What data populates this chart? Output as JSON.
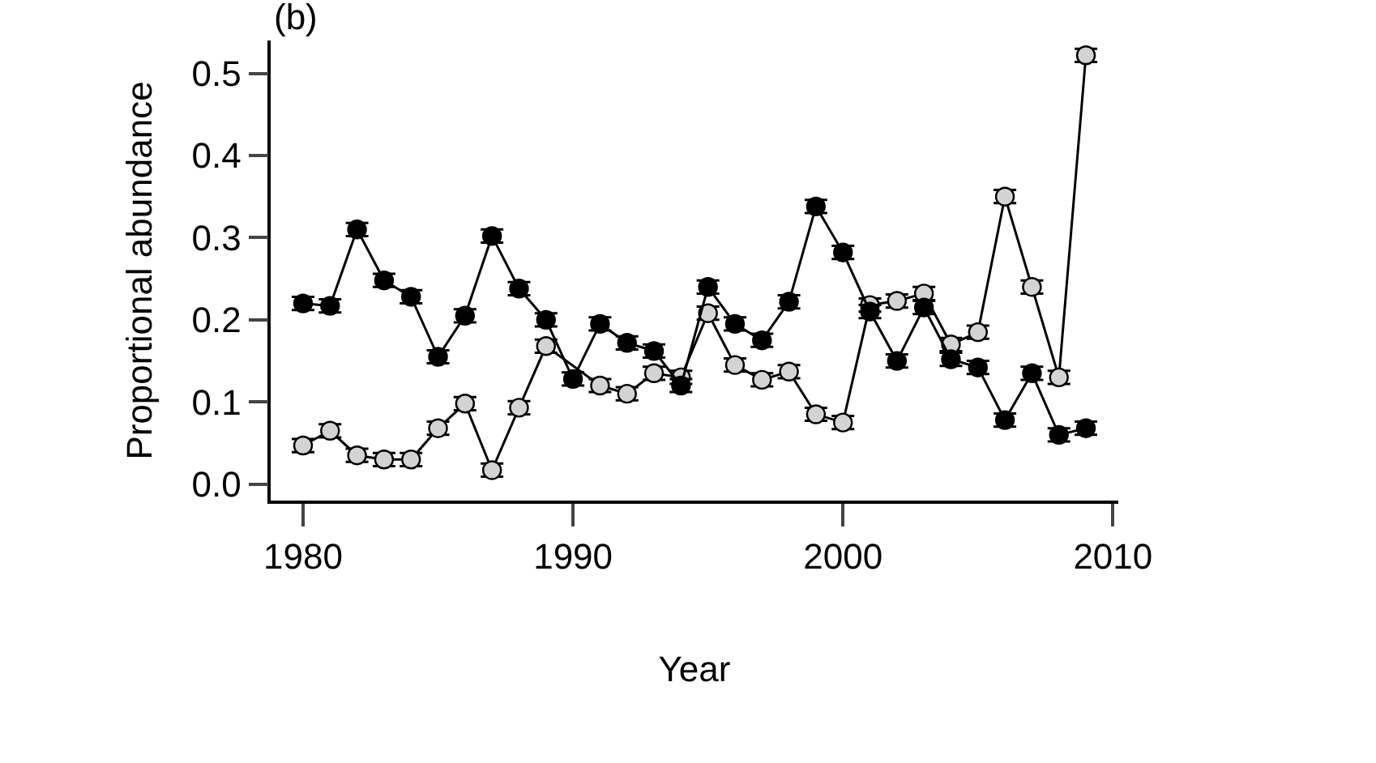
{
  "chart_data": {
    "type": "line",
    "title": "(b)",
    "xlabel": "Year",
    "ylabel": "Proportional abundance",
    "x": [
      1980,
      1981,
      1982,
      1983,
      1984,
      1985,
      1986,
      1987,
      1988,
      1989,
      1990,
      1991,
      1992,
      1993,
      1994,
      1995,
      1996,
      1997,
      1998,
      1999,
      2000,
      2001,
      2002,
      2003,
      2004,
      2005,
      2006,
      2007,
      2008,
      2009
    ],
    "series": [
      {
        "color": "#000000",
        "values": [
          0.22,
          0.217,
          0.31,
          0.248,
          0.228,
          0.155,
          0.205,
          0.302,
          0.238,
          0.2,
          0.128,
          0.195,
          0.172,
          0.162,
          0.12,
          0.24,
          0.195,
          0.175,
          0.222,
          0.338,
          0.282,
          0.21,
          0.15,
          0.215,
          0.152,
          0.142,
          0.078,
          0.135,
          0.06,
          0.068
        ],
        "errors": [
          0.008,
          0.008,
          0.008,
          0.008,
          0.008,
          0.008,
          0.008,
          0.008,
          0.008,
          0.008,
          0.008,
          0.008,
          0.008,
          0.008,
          0.008,
          0.008,
          0.008,
          0.008,
          0.008,
          0.008,
          0.008,
          0.008,
          0.008,
          0.008,
          0.008,
          0.008,
          0.008,
          0.008,
          0.008,
          0.008
        ]
      },
      {
        "color": "#d3d3d3",
        "values": [
          0.047,
          0.065,
          0.035,
          0.03,
          0.03,
          0.068,
          0.098,
          0.017,
          0.093,
          0.168,
          null,
          0.12,
          0.11,
          0.135,
          0.13,
          0.208,
          0.145,
          0.127,
          0.137,
          0.085,
          0.075,
          0.218,
          0.223,
          0.232,
          0.17,
          0.185,
          0.35,
          0.24,
          0.13,
          0.522
        ],
        "errors": [
          0.008,
          0.008,
          0.008,
          0.008,
          0.008,
          0.008,
          0.008,
          0.008,
          0.008,
          0.008,
          null,
          0.008,
          0.008,
          0.008,
          0.008,
          0.008,
          0.008,
          0.008,
          0.008,
          0.008,
          0.008,
          0.008,
          0.008,
          0.008,
          0.008,
          0.008,
          0.008,
          0.008,
          0.008,
          0.008
        ]
      }
    ],
    "xlim": [
      1978.8,
      2010.2
    ],
    "xticks": [
      1980,
      1990,
      2000,
      2010
    ],
    "ylim": [
      -0.02,
      0.54
    ],
    "yticks": [
      {
        "value": 0,
        "label": "0.0"
      },
      0.1,
      0.2,
      0.3,
      0.4,
      0.5
    ],
    "marker": "circle",
    "line_style": "solid"
  }
}
